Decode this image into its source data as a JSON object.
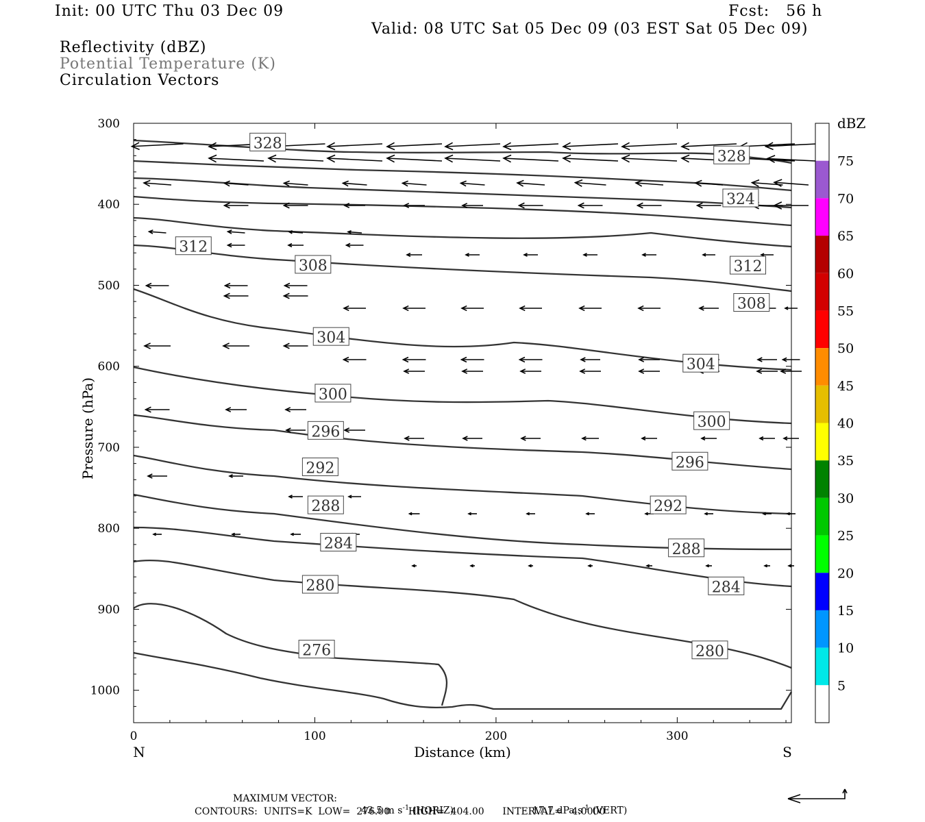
{
  "header": {
    "init": "Init: 00 UTC Thu 03 Dec 09",
    "fcst": "Fcst:   56 h",
    "valid": "Valid: 08 UTC Sat 05 Dec 09 (03 EST Sat 05 Dec 09)",
    "fields": [
      "Reflectivity (dBZ)",
      "Potential Temperature (K)",
      "Circulation Vectors"
    ]
  },
  "footer": {
    "max_vector_label": "MAXIMUM VECTOR:",
    "max_vector_horiz": "43.5 m s",
    "horiz_tag": "(HORIZ)",
    "max_vector_vert": "17.7 dPa s",
    "vert_tag": "(VERT)",
    "contours": "CONTOURS:  UNITS=K  LOW=  276.00      HIGH=  404.00      INTERVAL=   4.0000",
    "exponent": "-1"
  },
  "colorbar": {
    "unit": "dBZ",
    "levels": [
      5,
      10,
      15,
      20,
      25,
      30,
      35,
      40,
      45,
      50,
      55,
      60,
      65,
      70,
      75
    ],
    "colors": [
      "#00e8e8",
      "#0096ff",
      "#0000ff",
      "#00ff00",
      "#00c800",
      "#008200",
      "#ffff00",
      "#e6be00",
      "#ff8c00",
      "#ff0000",
      "#d20000",
      "#b40000",
      "#ff00ff",
      "#9b59d0"
    ]
  },
  "chart_data": {
    "type": "contour",
    "xlabel": "Distance (km)",
    "ylabel": "Pressure (hPa)",
    "xlim": [
      0,
      363
    ],
    "ylim": [
      1040,
      300
    ],
    "xticks": [
      0,
      100,
      200,
      300
    ],
    "yticks": [
      300,
      400,
      500,
      600,
      700,
      800,
      900,
      1000
    ],
    "x_end_labels": {
      "left": "N",
      "right": "S"
    },
    "contour_labels": [
      {
        "text": "328",
        "x": 74,
        "p": 324
      },
      {
        "text": "328",
        "x": 330,
        "p": 340
      },
      {
        "text": "324",
        "x": 335,
        "p": 393
      },
      {
        "text": "312",
        "x": 33,
        "p": 452
      },
      {
        "text": "312",
        "x": 339,
        "p": 476
      },
      {
        "text": "308",
        "x": 99,
        "p": 475
      },
      {
        "text": "308",
        "x": 341,
        "p": 522
      },
      {
        "text": "304",
        "x": 109,
        "p": 564
      },
      {
        "text": "304",
        "x": 313,
        "p": 597
      },
      {
        "text": "300",
        "x": 110,
        "p": 634
      },
      {
        "text": "300",
        "x": 319,
        "p": 668
      },
      {
        "text": "296",
        "x": 106,
        "p": 680
      },
      {
        "text": "296",
        "x": 307,
        "p": 718
      },
      {
        "text": "292",
        "x": 103,
        "p": 725
      },
      {
        "text": "292",
        "x": 295,
        "p": 772
      },
      {
        "text": "288",
        "x": 106,
        "p": 772
      },
      {
        "text": "288",
        "x": 305,
        "p": 825
      },
      {
        "text": "284",
        "x": 113,
        "p": 818
      },
      {
        "text": "284",
        "x": 327,
        "p": 872
      },
      {
        "text": "280",
        "x": 103,
        "p": 870
      },
      {
        "text": "280",
        "x": 318,
        "p": 951
      },
      {
        "text": "276",
        "x": 101,
        "p": 950
      }
    ]
  }
}
